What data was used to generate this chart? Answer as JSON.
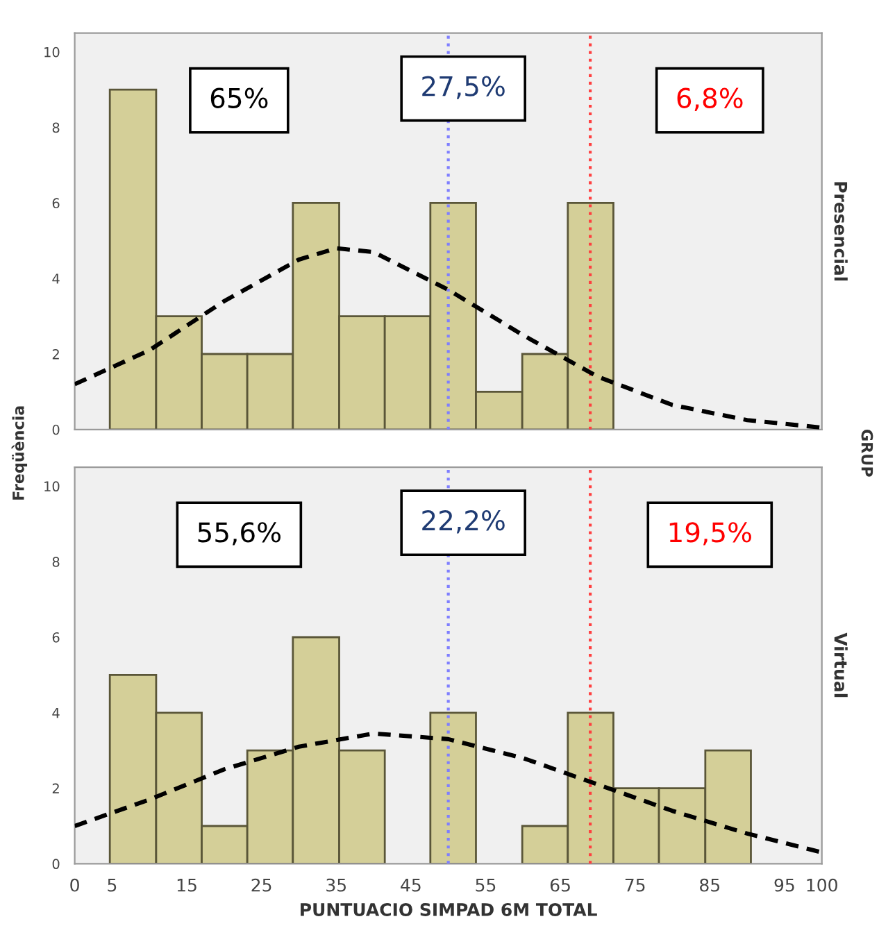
{
  "chart_data": [
    {
      "type": "histogram",
      "ylabel": "Freqüència",
      "bins": [
        4.7,
        10.9,
        17.0,
        23.1,
        29.2,
        35.4,
        41.5,
        47.6,
        53.7,
        59.9,
        66.0,
        72.1
      ],
      "series": [
        {
          "color": "#d4cf98",
          "values": [
            9,
            3,
            2,
            2,
            6,
            3,
            3,
            6,
            1,
            2,
            6
          ]
        },
        {
          "type": "line",
          "color": "#000000",
          "line_style": "dashed",
          "x": [
            0,
            10,
            20,
            30,
            35,
            40,
            50,
            60,
            70,
            80,
            90,
            100
          ],
          "values": [
            1.2,
            2.1,
            3.4,
            4.5,
            4.8,
            4.7,
            3.7,
            2.5,
            1.4,
            0.65,
            0.25,
            0.05
          ]
        }
      ],
      "xlim": [
        0,
        100
      ],
      "ylim": [
        0,
        10.5
      ],
      "yticks": [
        0,
        2,
        4,
        6,
        8,
        10
      ],
      "tick_labels": "y",
      "ref_lines": [
        {
          "axis": "x",
          "value": 50,
          "color": "#7f7fff",
          "line_style": "dotted"
        },
        {
          "axis": "x",
          "value": 69,
          "color": "#ff4040",
          "line_style": "dotted"
        }
      ],
      "annotations": [
        "65%",
        "27,5%",
        "6,8%",
        "Presencial",
        "GRUP"
      ]
    },
    {
      "type": "histogram",
      "xlabel": "PUNTUACIO SIMPAD 6M TOTAL",
      "bins": [
        4.7,
        10.9,
        17.0,
        23.1,
        29.2,
        35.4,
        41.5,
        47.6,
        53.7,
        59.9,
        66.0,
        72.1,
        78.2,
        84.4,
        90.5
      ],
      "series": [
        {
          "color": "#d4cf98",
          "values": [
            5,
            4,
            1,
            3,
            6,
            3,
            0,
            4,
            0,
            1,
            4,
            2,
            2,
            3
          ]
        },
        {
          "type": "line",
          "color": "#000000",
          "line_style": "dashed",
          "x": [
            0,
            10,
            20,
            30,
            40,
            50,
            60,
            70,
            80,
            90,
            100
          ],
          "values": [
            1.0,
            1.7,
            2.5,
            3.1,
            3.45,
            3.3,
            2.8,
            2.1,
            1.4,
            0.8,
            0.3
          ]
        }
      ],
      "xlim": [
        0,
        100
      ],
      "ylim": [
        0,
        10.5
      ],
      "yticks": [
        0,
        2,
        4,
        6,
        8,
        10
      ],
      "xticks": [
        0,
        5,
        15,
        25,
        35,
        45,
        55,
        65,
        75,
        85,
        95,
        100
      ],
      "ref_lines": [
        {
          "axis": "x",
          "value": 50,
          "color": "#7f7fff",
          "line_style": "dotted"
        },
        {
          "axis": "x",
          "value": 69,
          "color": "#ff4040",
          "line_style": "dotted"
        }
      ],
      "annotations": [
        "55,6%",
        "22,2%",
        "19,5%",
        "Virtual"
      ]
    }
  ]
}
